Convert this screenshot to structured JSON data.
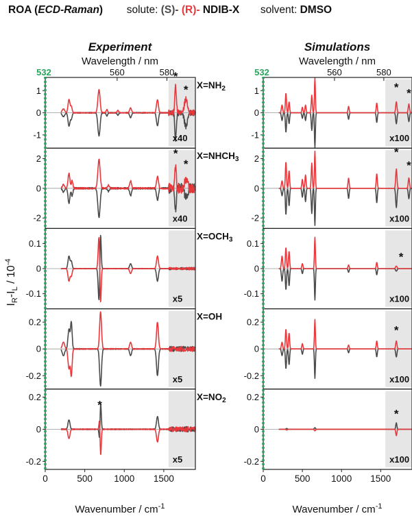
{
  "header": {
    "roa_prefix": "ROA (",
    "roa_method": "ECD-Raman",
    "roa_suffix": ")",
    "solute_label": "solute:",
    "s_label": "(S)-",
    "r_label": "(R)-",
    "compound": "NDIB-X",
    "solvent_label": "solvent:",
    "solvent": "DMSO"
  },
  "colors": {
    "R": "#e8383b",
    "S": "#4a4a4a",
    "laser": "#27a35b",
    "shade": "#e6e6e6"
  },
  "chart_data": [
    {
      "type": "line",
      "title": "Experiment",
      "xlabel": "Wavenumber / cm-1",
      "ylabel": "IR-IL / 10-4",
      "x2label": "Wavelength / nm",
      "xlim": [
        0,
        1900
      ],
      "x_ticks": [
        "0",
        "500",
        "1000",
        "1500"
      ],
      "top_ticks": [
        {
          "value": 0,
          "label": "532"
        },
        {
          "value": 910,
          "label": "560"
        },
        {
          "value": 1540,
          "label": "580"
        }
      ],
      "series_names": [
        "(S)",
        "(R)"
      ],
      "shade_from": 1560,
      "panels": [
        {
          "label": "X=NH2",
          "label_main": "X=NH",
          "label_sub": "2",
          "ylim": [
            -1.6,
            1.6
          ],
          "yticks": [
            "1",
            "0",
            "-1"
          ],
          "scale": "x40",
          "stars": [
            {
              "x": 1650,
              "y": 1.35
            },
            {
              "x": 1780,
              "y": 0.75
            }
          ],
          "peaks": [
            [
              230,
              0.18,
              15
            ],
            [
              300,
              0.6,
              12
            ],
            [
              330,
              0.3,
              10
            ],
            [
              680,
              1.05,
              14
            ],
            [
              780,
              0.15,
              10
            ],
            [
              920,
              0.1,
              10
            ],
            [
              1080,
              0.22,
              12
            ],
            [
              1420,
              0.6,
              12
            ],
            [
              1650,
              1.2,
              10
            ],
            [
              1780,
              0.6,
              20
            ]
          ],
          "noise": 0.22
        },
        {
          "label": "X=NHCH3",
          "label_main": "X=NHCH",
          "label_sub": "3",
          "ylim": [
            -2.7,
            2.7
          ],
          "yticks": [
            "2",
            "0",
            "-2"
          ],
          "scale": "x40",
          "stars": [
            {
              "x": 1650,
              "y": 1.9
            },
            {
              "x": 1780,
              "y": 1.2
            }
          ],
          "peaks": [
            [
              230,
              0.25,
              15
            ],
            [
              300,
              1.0,
              12
            ],
            [
              340,
              0.5,
              10
            ],
            [
              680,
              2.0,
              14
            ],
            [
              800,
              0.2,
              10
            ],
            [
              1080,
              0.5,
              12
            ],
            [
              1420,
              0.8,
              12
            ],
            [
              1650,
              1.5,
              10
            ],
            [
              1780,
              0.6,
              20
            ]
          ],
          "noise": 0.35
        },
        {
          "label": "X=OCH3",
          "label_main": "X=OCH",
          "label_sub": "3",
          "ylim": [
            -0.16,
            0.16
          ],
          "yticks": [
            "0.1",
            "0",
            "-0.1"
          ],
          "scale": "x5",
          "stars": [],
          "peaks": [
            [
              300,
              -0.05,
              12
            ],
            [
              330,
              -0.03,
              10
            ],
            [
              680,
              0.13,
              10
            ],
            [
              700,
              -0.15,
              8
            ],
            [
              1080,
              -0.02,
              12
            ],
            [
              1420,
              0.05,
              12
            ]
          ],
          "noise": 0.08
        },
        {
          "label": "X=OH",
          "label_main": "X=OH",
          "label_sub": "",
          "ylim": [
            -0.3,
            0.3
          ],
          "yticks": [
            "0.2",
            "0",
            "-0.2"
          ],
          "scale": "x5",
          "stars": [],
          "peaks": [
            [
              230,
              0.05,
              15
            ],
            [
              300,
              -0.15,
              12
            ],
            [
              330,
              -0.2,
              10
            ],
            [
              700,
              0.28,
              12
            ],
            [
              1080,
              0.05,
              12
            ],
            [
              1420,
              0.2,
              12
            ]
          ],
          "noise": 0.18
        },
        {
          "label": "X=NO2",
          "label_main": "X=NO",
          "label_sub": "2",
          "ylim": [
            -0.25,
            0.25
          ],
          "yticks": [
            "0.2",
            "0",
            "-0.2"
          ],
          "scale": "x5",
          "stars": [
            {
              "x": 690,
              "y": 0.11
            }
          ],
          "peaks": [
            [
              300,
              -0.06,
              12
            ],
            [
              690,
              0.1,
              8
            ],
            [
              700,
              -0.2,
              8
            ],
            [
              1420,
              -0.08,
              12
            ]
          ],
          "noise": 0.18
        }
      ]
    },
    {
      "type": "line",
      "title": "Simulations",
      "xlabel": "Wavenumber / cm-1",
      "x2label": "Wavelength / nm",
      "xlim": [
        0,
        1900
      ],
      "x_ticks": [
        "0",
        "500",
        "1000",
        "1500"
      ],
      "top_ticks": [
        {
          "value": 0,
          "label": "532"
        },
        {
          "value": 910,
          "label": "560"
        },
        {
          "value": 1540,
          "label": "580"
        }
      ],
      "series_names": [
        "(S)",
        "(R)"
      ],
      "shade_from": 1560,
      "panels": [
        {
          "ylim": [
            -1.6,
            1.6
          ],
          "yticks": [
            "1",
            "0",
            "-1"
          ],
          "scale": "x100",
          "stars": [
            {
              "x": 1700,
              "y": 0.85
            },
            {
              "x": 1860,
              "y": 0.6
            }
          ],
          "peaks": [
            [
              240,
              0.35,
              8
            ],
            [
              290,
              0.9,
              7
            ],
            [
              330,
              0.5,
              7
            ],
            [
              500,
              0.25,
              7
            ],
            [
              540,
              0.35,
              7
            ],
            [
              620,
              0.8,
              7
            ],
            [
              660,
              1.6,
              6
            ],
            [
              1090,
              0.3,
              7
            ],
            [
              1450,
              0.45,
              7
            ],
            [
              1700,
              0.5,
              8
            ],
            [
              1860,
              0.4,
              8
            ]
          ],
          "noise": 0
        },
        {
          "ylim": [
            -2.7,
            2.7
          ],
          "yticks": [
            "2",
            "0",
            "-2"
          ],
          "scale": "x100",
          "stars": [
            {
              "x": 1700,
              "y": 2.0
            },
            {
              "x": 1860,
              "y": 1.1
            }
          ],
          "peaks": [
            [
              240,
              0.5,
              8
            ],
            [
              290,
              1.8,
              7
            ],
            [
              330,
              1.2,
              7
            ],
            [
              500,
              0.6,
              7
            ],
            [
              540,
              0.9,
              7
            ],
            [
              620,
              1.7,
              7
            ],
            [
              660,
              2.5,
              6
            ],
            [
              1090,
              0.7,
              7
            ],
            [
              1450,
              1.0,
              7
            ],
            [
              1700,
              1.3,
              8
            ],
            [
              1860,
              0.7,
              8
            ]
          ],
          "noise": 0
        },
        {
          "ylim": [
            -0.16,
            0.16
          ],
          "yticks": [
            "0.1",
            "0",
            "-0.1"
          ],
          "scale": "x100",
          "stars": [
            {
              "x": 1760,
              "y": 0.02
            }
          ],
          "peaks": [
            [
              240,
              0.05,
              8
            ],
            [
              290,
              0.085,
              7
            ],
            [
              330,
              0.07,
              7
            ],
            [
              500,
              0.02,
              7
            ],
            [
              660,
              0.125,
              6
            ],
            [
              1090,
              0.015,
              7
            ],
            [
              1450,
              0.025,
              7
            ],
            [
              1700,
              0.01,
              10
            ]
          ],
          "noise": 0
        },
        {
          "ylim": [
            -0.3,
            0.3
          ],
          "yticks": [
            "0.2",
            "0",
            "-0.2"
          ],
          "scale": "x100",
          "stars": [
            {
              "x": 1700,
              "y": 0.09
            }
          ],
          "peaks": [
            [
              240,
              0.05,
              8
            ],
            [
              290,
              0.15,
              7
            ],
            [
              330,
              0.12,
              7
            ],
            [
              500,
              0.04,
              7
            ],
            [
              660,
              0.22,
              6
            ],
            [
              1090,
              0.03,
              7
            ],
            [
              1450,
              0.06,
              7
            ],
            [
              1700,
              0.06,
              8
            ]
          ],
          "noise": 0
        },
        {
          "ylim": [
            -0.25,
            0.25
          ],
          "yticks": [
            "0.2",
            "0",
            "-0.2"
          ],
          "scale": "x100",
          "stars": [
            {
              "x": 1700,
              "y": 0.055
            }
          ],
          "peaks": [
            [
              300,
              -0.005,
              8
            ],
            [
              660,
              -0.01,
              8
            ],
            [
              1700,
              -0.04,
              7
            ]
          ],
          "noise": 0
        }
      ]
    }
  ]
}
